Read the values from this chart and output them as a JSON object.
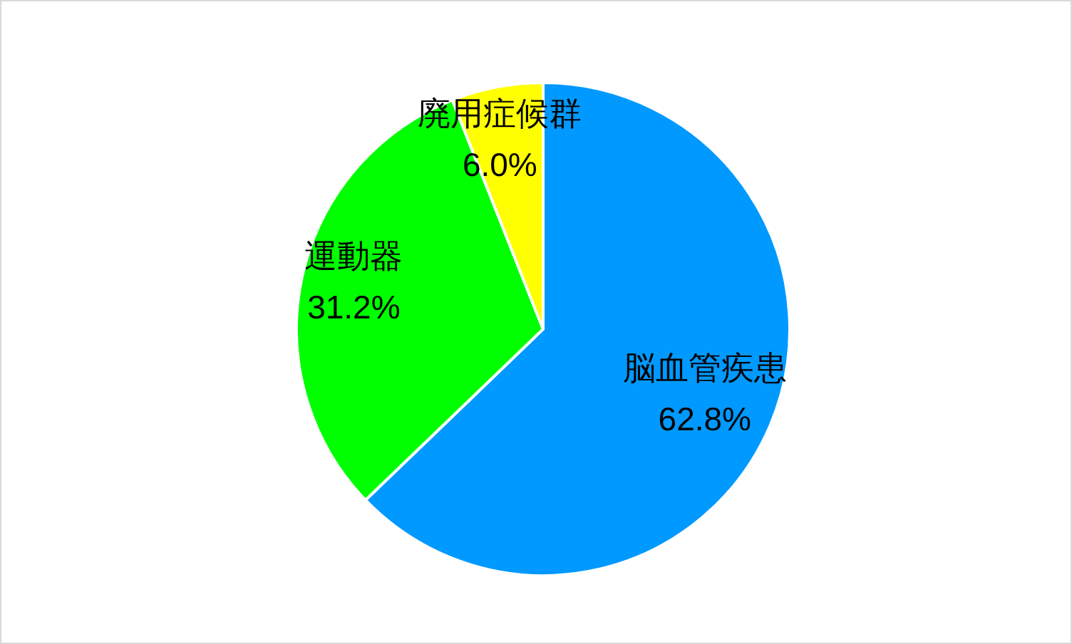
{
  "chart_data": {
    "type": "pie",
    "categories": [
      "脳血管疾患",
      "運動器",
      "廃用症候群"
    ],
    "values": [
      62.8,
      31.2,
      6.0
    ],
    "colors": [
      "#0099ff",
      "#00ff00",
      "#ffff00"
    ],
    "value_labels": [
      "62.8%",
      "31.2%",
      "6.0%"
    ]
  }
}
